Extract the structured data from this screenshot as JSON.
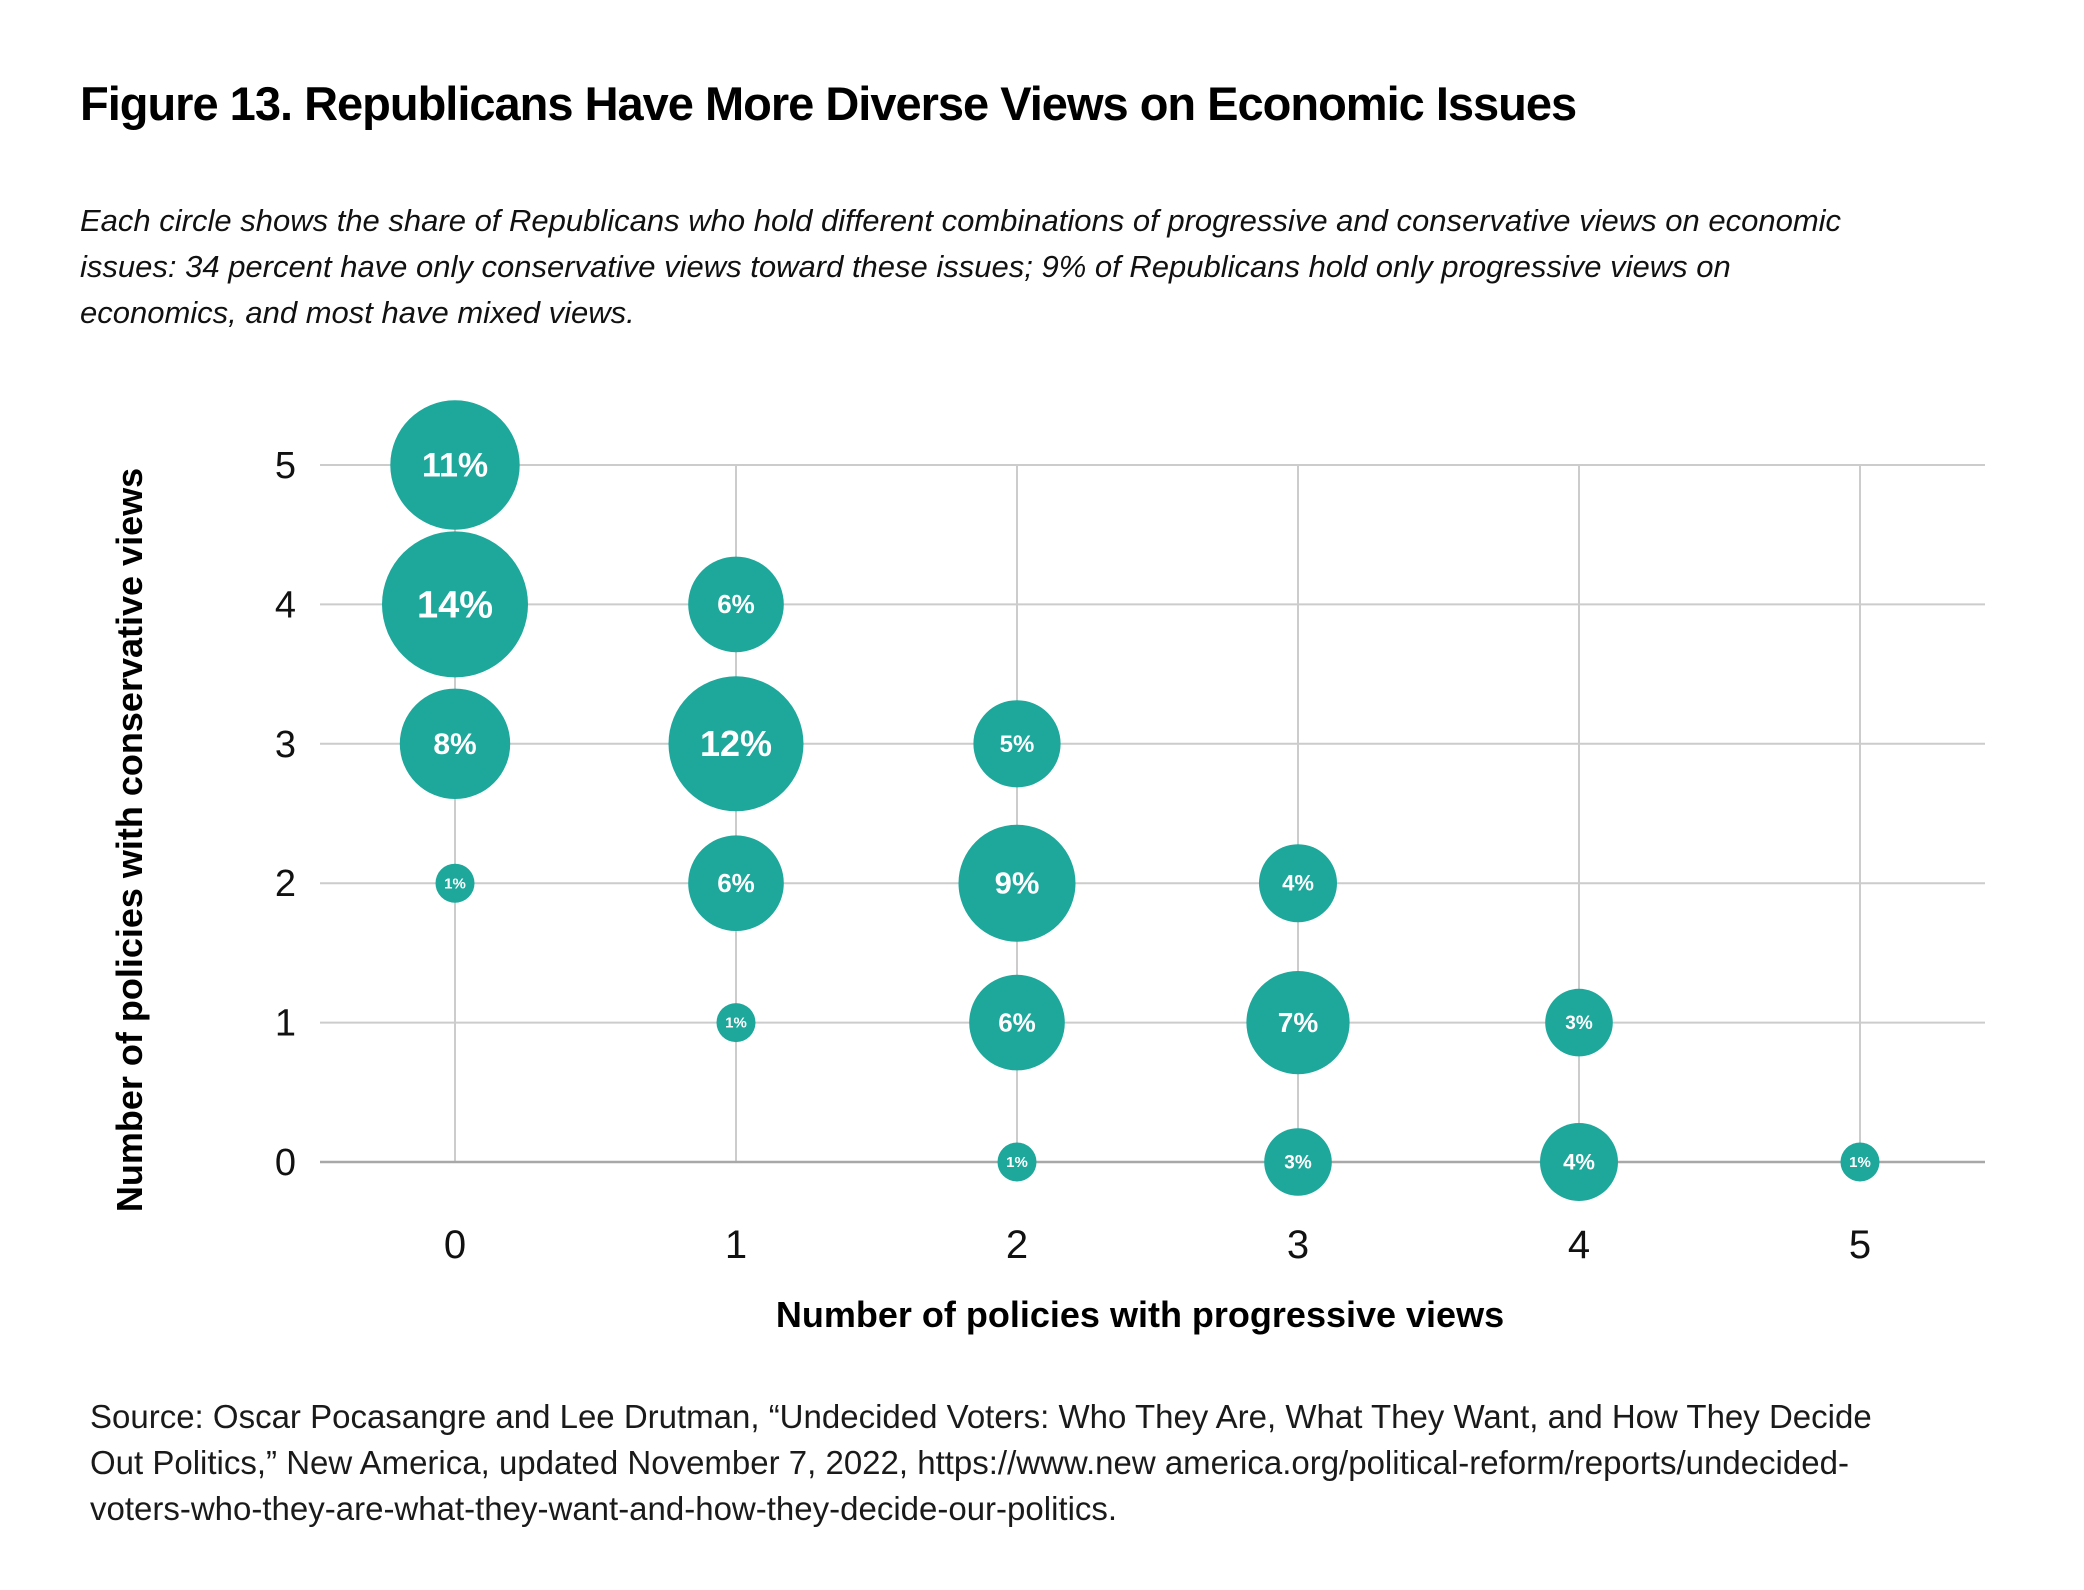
{
  "figure": {
    "title": "Figure 13. Republicans Have More Diverse Views on Economic Issues",
    "subtitle_lines": [
      "Each circle shows the share of Republicans who hold different combinations of progressive and conservative views on economic",
      "issues: 34 percent have only conservative views toward these issues; 9% of Republicans hold only progressive views on",
      "economics, and most have mixed views."
    ],
    "source_lines": [
      "Source: Oscar Pocasangre and Lee Drutman, “Undecided Voters: Who They Are, What They Want, and How They Decide",
      "Out Politics,” New America, updated November 7, 2022, https://www.new america.org/political-reform/reports/undecided-",
      "voters-who-they-are-what-they-want-and-how-they-decide-our-politics."
    ]
  },
  "chart_data": {
    "type": "scatter",
    "variant": "bubble",
    "title": "Figure 13. Republicans Have More Diverse Views on Economic Issues",
    "xlabel": "Number of policies with progressive views",
    "ylabel": "Number of policies with conservative views",
    "x_tick_labels": [
      "0",
      "1",
      "2",
      "3",
      "4",
      "5"
    ],
    "y_tick_labels": [
      "5",
      "4",
      "3",
      "2",
      "1",
      "0"
    ],
    "xlim": [
      -0.5,
      5.5
    ],
    "ylim": [
      -0.5,
      5.5
    ],
    "grid": true,
    "legend": "none",
    "bubble_area_proportional_to_value": true,
    "colors": {
      "bubble": "#1ea79b",
      "bubble_label": "#ffffff",
      "gridline": "#cccccc",
      "axis_line": "#a8a8a8",
      "text": "#111111"
    },
    "points": [
      {
        "x": 0,
        "y": 5,
        "value": 11,
        "label": "11%"
      },
      {
        "x": 0,
        "y": 4,
        "value": 14,
        "label": "14%"
      },
      {
        "x": 0,
        "y": 3,
        "value": 8,
        "label": "8%"
      },
      {
        "x": 0,
        "y": 2,
        "value": 1,
        "label": "1%"
      },
      {
        "x": 1,
        "y": 4,
        "value": 6,
        "label": "6%"
      },
      {
        "x": 1,
        "y": 3,
        "value": 12,
        "label": "12%"
      },
      {
        "x": 1,
        "y": 2,
        "value": 6,
        "label": "6%"
      },
      {
        "x": 1,
        "y": 1,
        "value": 1,
        "label": "1%"
      },
      {
        "x": 2,
        "y": 3,
        "value": 5,
        "label": "5%"
      },
      {
        "x": 2,
        "y": 2,
        "value": 9,
        "label": "9%"
      },
      {
        "x": 2,
        "y": 1,
        "value": 6,
        "label": "6%"
      },
      {
        "x": 2,
        "y": 0,
        "value": 1,
        "label": "1%"
      },
      {
        "x": 3,
        "y": 2,
        "value": 4,
        "label": "4%"
      },
      {
        "x": 3,
        "y": 1,
        "value": 7,
        "label": "7%"
      },
      {
        "x": 3,
        "y": 0,
        "value": 3,
        "label": "3%"
      },
      {
        "x": 4,
        "y": 1,
        "value": 3,
        "label": "3%"
      },
      {
        "x": 4,
        "y": 0,
        "value": 4,
        "label": "4%"
      },
      {
        "x": 5,
        "y": 0,
        "value": 1,
        "label": "1%"
      }
    ]
  }
}
